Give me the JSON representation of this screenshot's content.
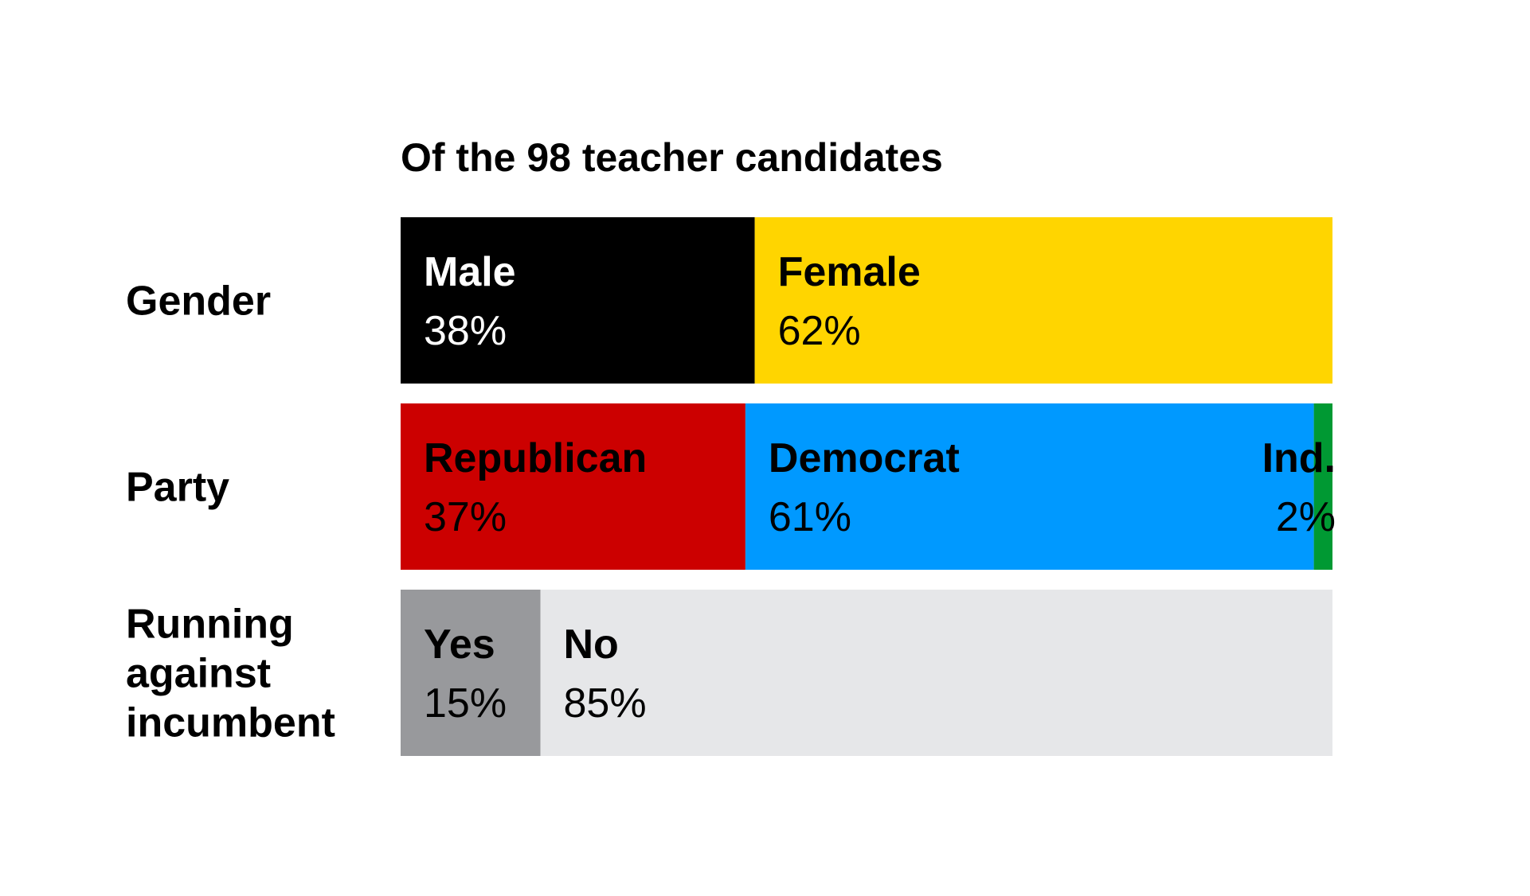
{
  "chart_data": {
    "type": "bar",
    "orientation": "horizontal-stacked-100",
    "title": "Of the 98 teacher candidates",
    "unit": "%",
    "rows": [
      {
        "label_lines": [
          "Gender"
        ],
        "segments": [
          {
            "name": "Male",
            "value": 38,
            "value_label": "38%",
            "color": "#000000",
            "text_color": "#ffffff"
          },
          {
            "name": "Female",
            "value": 62,
            "value_label": "62%",
            "color": "#FFD500",
            "text_color": "#000000"
          }
        ]
      },
      {
        "label_lines": [
          "Party"
        ],
        "segments": [
          {
            "name": "Republican",
            "value": 37,
            "value_label": "37%",
            "color": "#CC0000",
            "text_color": "#000000"
          },
          {
            "name": "Democrat",
            "value": 61,
            "value_label": "61%",
            "color": "#0099FF",
            "text_color": "#000000"
          },
          {
            "name": "Ind.",
            "value": 2,
            "value_label": "2%",
            "color": "#009933",
            "text_color": "#000000",
            "label_outside_left": true
          }
        ]
      },
      {
        "label_lines": [
          "Running",
          "against",
          "incumbent"
        ],
        "segments": [
          {
            "name": "Yes",
            "value": 15,
            "value_label": "15%",
            "color": "#98999C",
            "text_color": "#000000"
          },
          {
            "name": "No",
            "value": 85,
            "value_label": "85%",
            "color": "#E6E7E9",
            "text_color": "#000000"
          }
        ]
      }
    ]
  }
}
